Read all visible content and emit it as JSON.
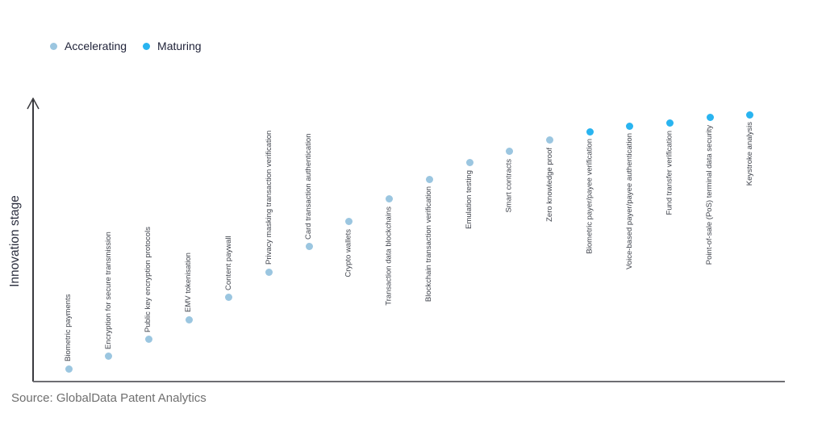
{
  "legend": {
    "items": [
      {
        "label": "Accelerating",
        "color": "#9bc6e0"
      },
      {
        "label": "Maturing",
        "color": "#29b4f0"
      }
    ]
  },
  "axis": {
    "y_label": "Innovation stage"
  },
  "source": "Source: GlobalData Patent Analytics",
  "colors": {
    "accelerating": "#9bc6e0",
    "maturing": "#29b4f0",
    "y_axis_line": "#3a3a3e",
    "x_axis_line": "#6e6e72",
    "point_label_text": "#3e424b",
    "legend_text": "#21243a",
    "source_text": "#6f6f6f"
  },
  "chart_data": {
    "type": "scatter",
    "title": "",
    "xlabel": "",
    "ylabel": "Innovation stage",
    "grid": false,
    "legend_position": "top-left",
    "x_axis": {
      "ticks": [],
      "visible": true
    },
    "y_axis": {
      "ticks": [],
      "visible": true,
      "arrow": true,
      "scale_note": "qualitative innovation stage, low to high (0-1 normalized estimates)"
    },
    "series": [
      {
        "name": "Accelerating",
        "color": "#9bc6e0",
        "points": [
          {
            "order": 1,
            "label": "Biometric payments",
            "stage": 0.045
          },
          {
            "order": 2,
            "label": "Encryption for secure transmission",
            "stage": 0.09
          },
          {
            "order": 3,
            "label": "Public key encryption protocols",
            "stage": 0.15
          },
          {
            "order": 4,
            "label": "EMV tokenisation",
            "stage": 0.22
          },
          {
            "order": 5,
            "label": "Content paywall",
            "stage": 0.3
          },
          {
            "order": 6,
            "label": "Privacy masking transaction verification",
            "stage": 0.39
          },
          {
            "order": 7,
            "label": "Card transaction authentication",
            "stage": 0.48
          },
          {
            "order": 8,
            "label": "Crypto wallets",
            "stage": 0.57
          },
          {
            "order": 9,
            "label": "Transaction data blockchains",
            "stage": 0.65
          },
          {
            "order": 10,
            "label": "Blockchain transaction verification",
            "stage": 0.72
          },
          {
            "order": 11,
            "label": "Emulation testing",
            "stage": 0.78
          },
          {
            "order": 12,
            "label": "Smart contracts",
            "stage": 0.82
          },
          {
            "order": 13,
            "label": "Zero knowledge proof",
            "stage": 0.86
          }
        ]
      },
      {
        "name": "Maturing",
        "color": "#29b4f0",
        "points": [
          {
            "order": 14,
            "label": "Biometric payer/payee verification",
            "stage": 0.89
          },
          {
            "order": 15,
            "label": "Voice-based payer/payee authentication",
            "stage": 0.91
          },
          {
            "order": 16,
            "label": "Fund transfer verification",
            "stage": 0.92
          },
          {
            "order": 17,
            "label": "Point-of-sale (PoS) terminal data security",
            "stage": 0.94
          },
          {
            "order": 18,
            "label": "Keystroke analysis",
            "stage": 0.95
          }
        ]
      }
    ]
  }
}
